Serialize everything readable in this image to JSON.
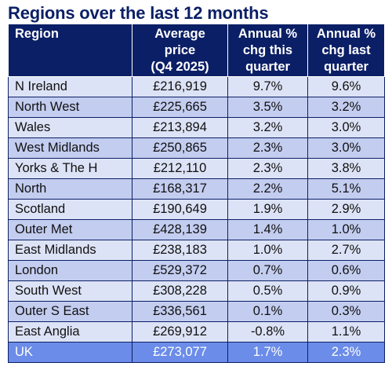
{
  "chart_data": {
    "type": "table",
    "title": "Regions over the last 12 months",
    "columns": [
      "Region",
      "Average price (Q4 2025)",
      "Annual % chg this quarter",
      "Annual % chg last quarter"
    ],
    "header_lines": [
      [
        "Region"
      ],
      [
        "Average",
        "price",
        "(Q4 2025)"
      ],
      [
        "Annual %",
        "chg this",
        "quarter"
      ],
      [
        "Annual %",
        "chg last",
        "quarter"
      ]
    ],
    "rows": [
      [
        "N Ireland",
        "£216,919",
        "9.7%",
        "9.6%"
      ],
      [
        "North West",
        "£225,665",
        "3.5%",
        "3.2%"
      ],
      [
        "Wales",
        "£213,894",
        "3.2%",
        "3.0%"
      ],
      [
        "West Midlands",
        "£250,865",
        "2.3%",
        "3.0%"
      ],
      [
        "Yorks & The H",
        "£212,110",
        "2.3%",
        "3.8%"
      ],
      [
        "North",
        "£168,317",
        "2.2%",
        "5.1%"
      ],
      [
        "Scotland",
        "£190,649",
        "1.9%",
        "2.9%"
      ],
      [
        "Outer Met",
        "£428,139",
        "1.4%",
        "1.0%"
      ],
      [
        "East Midlands",
        "£238,183",
        "1.0%",
        "2.7%"
      ],
      [
        "London",
        "£529,372",
        "0.7%",
        "0.6%"
      ],
      [
        "South West",
        "£308,228",
        "0.5%",
        "0.9%"
      ],
      [
        "Outer S East",
        "£336,561",
        "0.1%",
        "0.3%"
      ],
      [
        "East Anglia",
        "£269,912",
        "-0.8%",
        "1.1%"
      ]
    ],
    "total_row": [
      "UK",
      "£273,077",
      "1.7%",
      "2.3%"
    ]
  },
  "colors": {
    "header_bg": "#0b1f66",
    "title": "#0b1f66",
    "row_light": "#dde3f6",
    "row_dark": "#c3cdf0",
    "total_bg": "#6b8ce8"
  }
}
